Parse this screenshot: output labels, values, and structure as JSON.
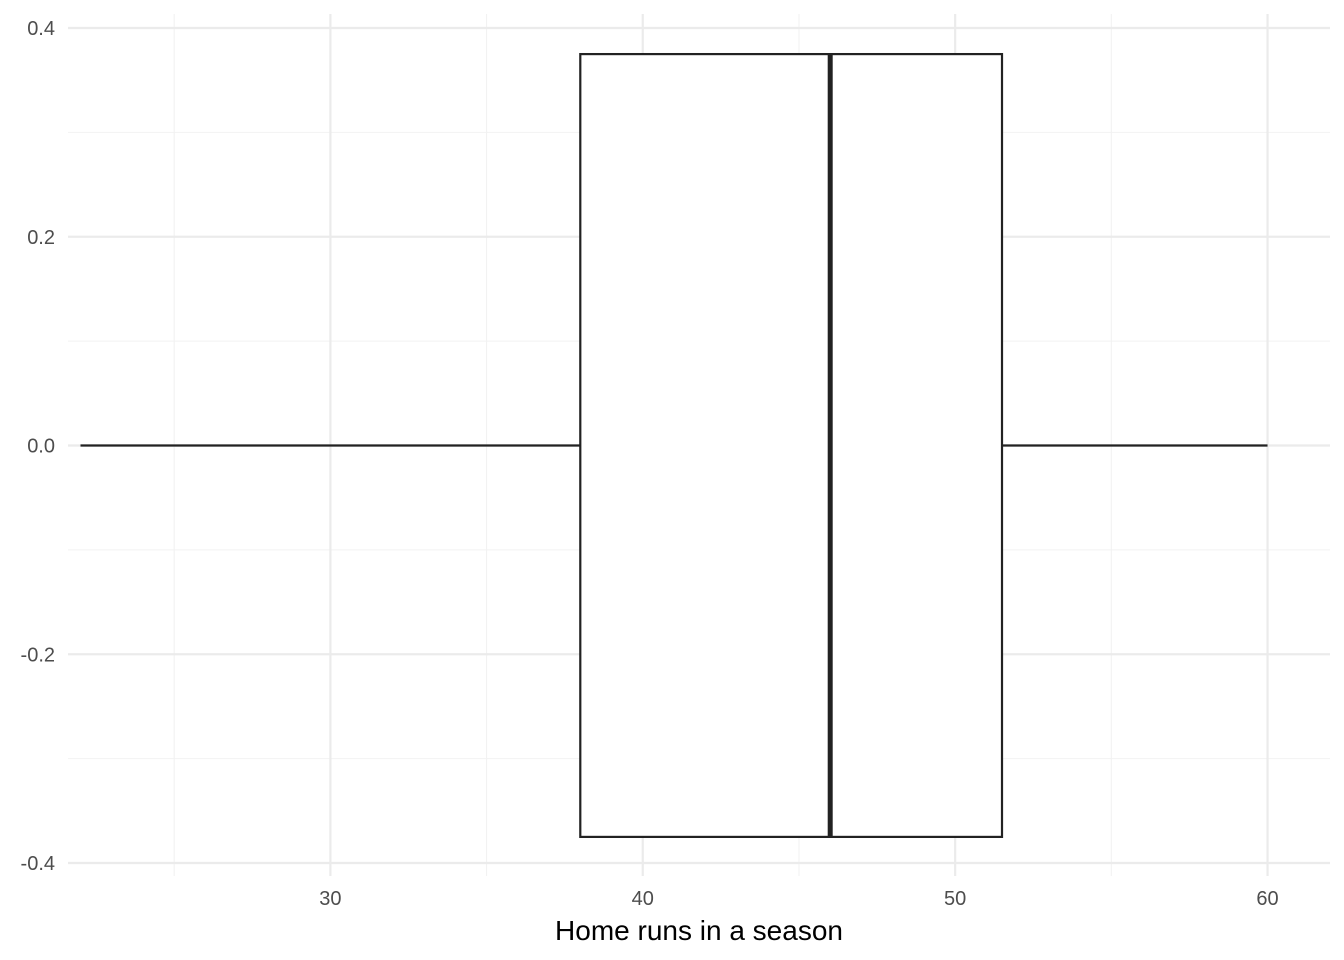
{
  "chart_data": {
    "type": "boxplot",
    "orientation": "horizontal",
    "title": "",
    "xlabel": "Home runs in a season",
    "ylabel": "",
    "xlim": [
      21.6,
      62.0
    ],
    "ylim": [
      -0.4,
      0.4
    ],
    "x_ticks": [
      30,
      40,
      50,
      60
    ],
    "x_tick_labels": [
      "30",
      "40",
      "50",
      "60"
    ],
    "y_ticks": [
      -0.4,
      -0.2,
      0.0,
      0.2,
      0.4
    ],
    "y_tick_labels": [
      "-0.4",
      "-0.2",
      "0.0",
      "0.2",
      "0.4"
    ],
    "box": {
      "min": 22,
      "q1": 38,
      "median": 46,
      "q3": 51.5,
      "max": 60,
      "box_half_width": 0.375
    },
    "grid": true,
    "legend": "none",
    "colors": {
      "box_fill": "#ffffff",
      "box_stroke": "#222222",
      "grid": "#ebebeb",
      "tick_text": "#4d4d4d"
    }
  }
}
